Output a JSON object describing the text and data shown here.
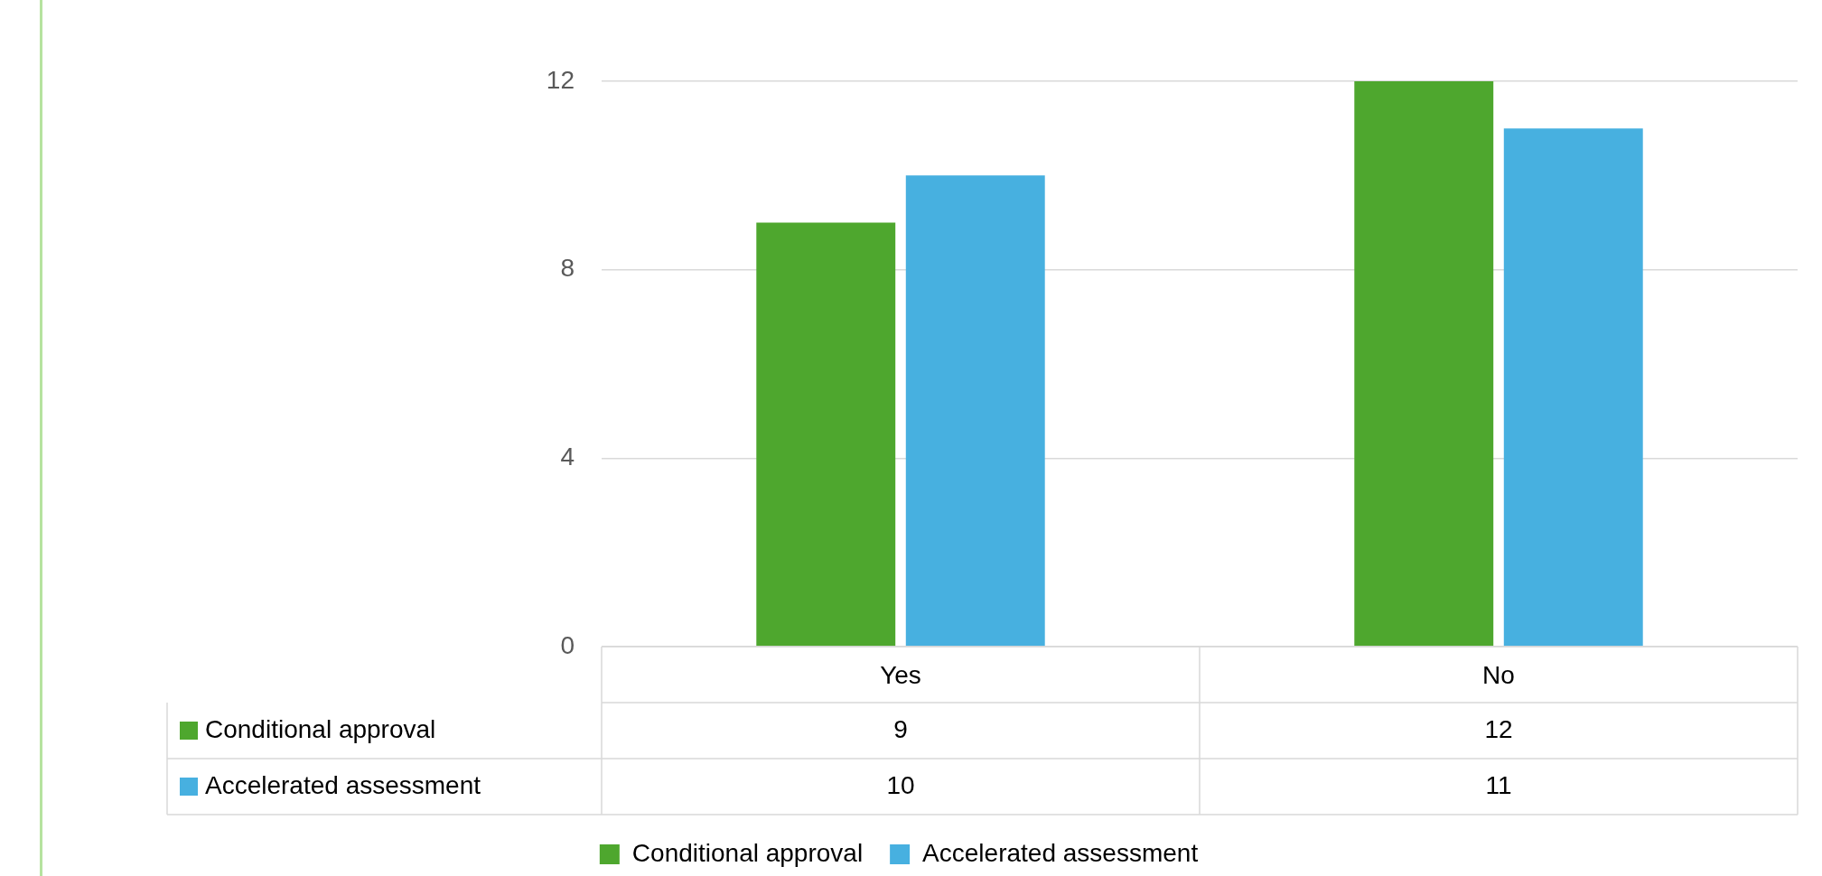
{
  "chart_data": {
    "type": "bar",
    "categories": [
      "Yes",
      "No"
    ],
    "series": [
      {
        "name": "Conditional approval",
        "color": "#4ea72e",
        "values": [
          9,
          12
        ]
      },
      {
        "name": "Accelerated assessment",
        "color": "#47b0e0",
        "values": [
          10,
          11
        ]
      }
    ],
    "ylim": [
      0,
      12
    ],
    "yticks": [
      0,
      4,
      8,
      12
    ],
    "grid": "y",
    "legend": "bottom",
    "data_labels": true
  }
}
